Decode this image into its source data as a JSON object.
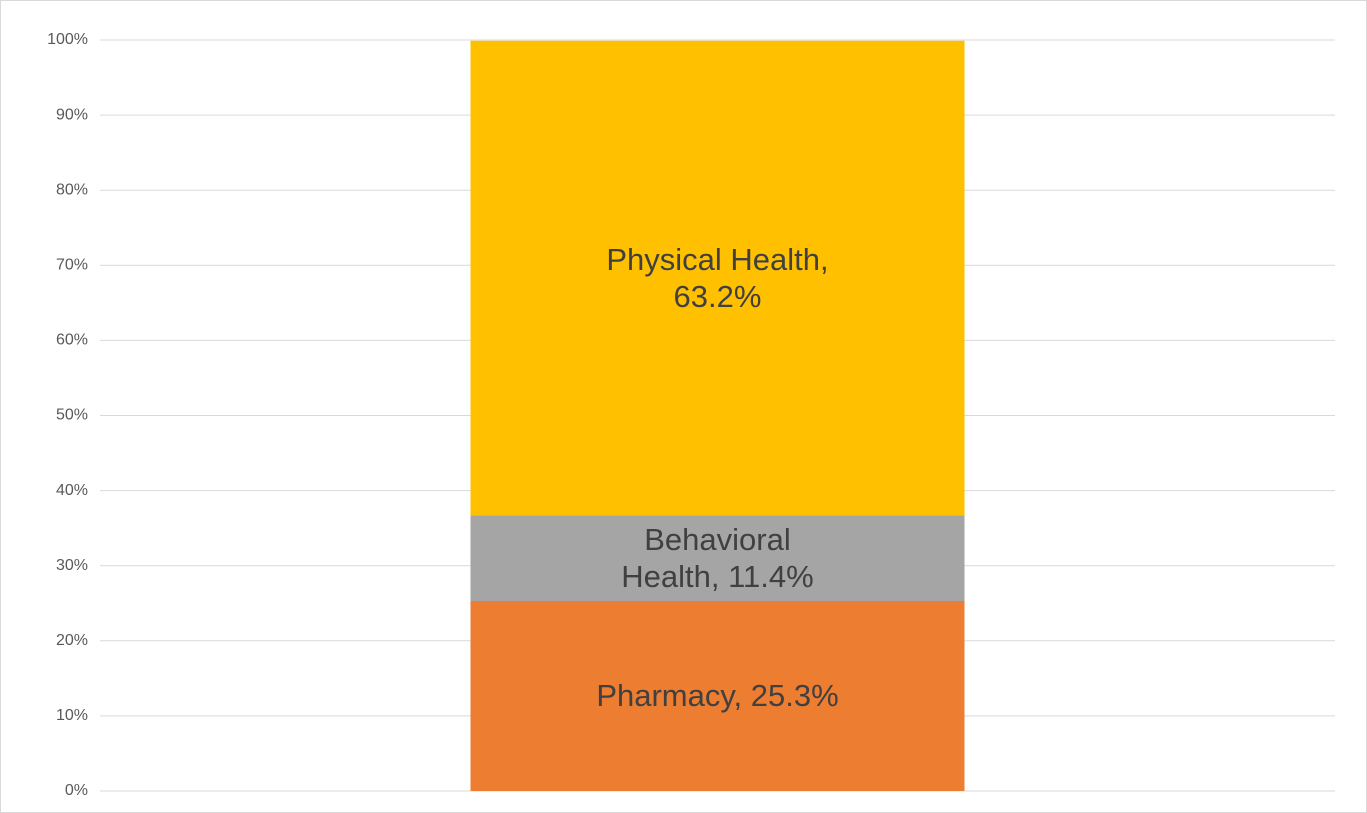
{
  "chart_data": {
    "type": "bar",
    "stacked": true,
    "categories": [
      null
    ],
    "series": [
      {
        "name": "Pharmacy",
        "color": "#ED7D31",
        "values": [
          25.3
        ],
        "value_labels": [
          "Pharmacy, 25.3%"
        ]
      },
      {
        "name": "Behavioral Health",
        "color": "#A5A5A5",
        "values": [
          11.4
        ],
        "value_labels": [
          "Behavioral Health, 11.4%"
        ]
      },
      {
        "name": "Physical Health",
        "color": "#FFC000",
        "values": [
          63.2
        ],
        "value_labels": [
          "Physical Health, 63.2%"
        ]
      }
    ],
    "ylim": [
      0,
      100
    ],
    "yticks": [
      {
        "value": 0,
        "label": "0%"
      },
      {
        "value": 10,
        "label": "10%"
      },
      {
        "value": 20,
        "label": "20%"
      },
      {
        "value": 30,
        "label": "30%"
      },
      {
        "value": 40,
        "label": "40%"
      },
      {
        "value": 50,
        "label": "50%"
      },
      {
        "value": 60,
        "label": "60%"
      },
      {
        "value": 70,
        "label": "70%"
      },
      {
        "value": 80,
        "label": "80%"
      },
      {
        "value": 90,
        "label": "90%"
      },
      {
        "value": 100,
        "label": "100%"
      }
    ],
    "grid": true
  }
}
